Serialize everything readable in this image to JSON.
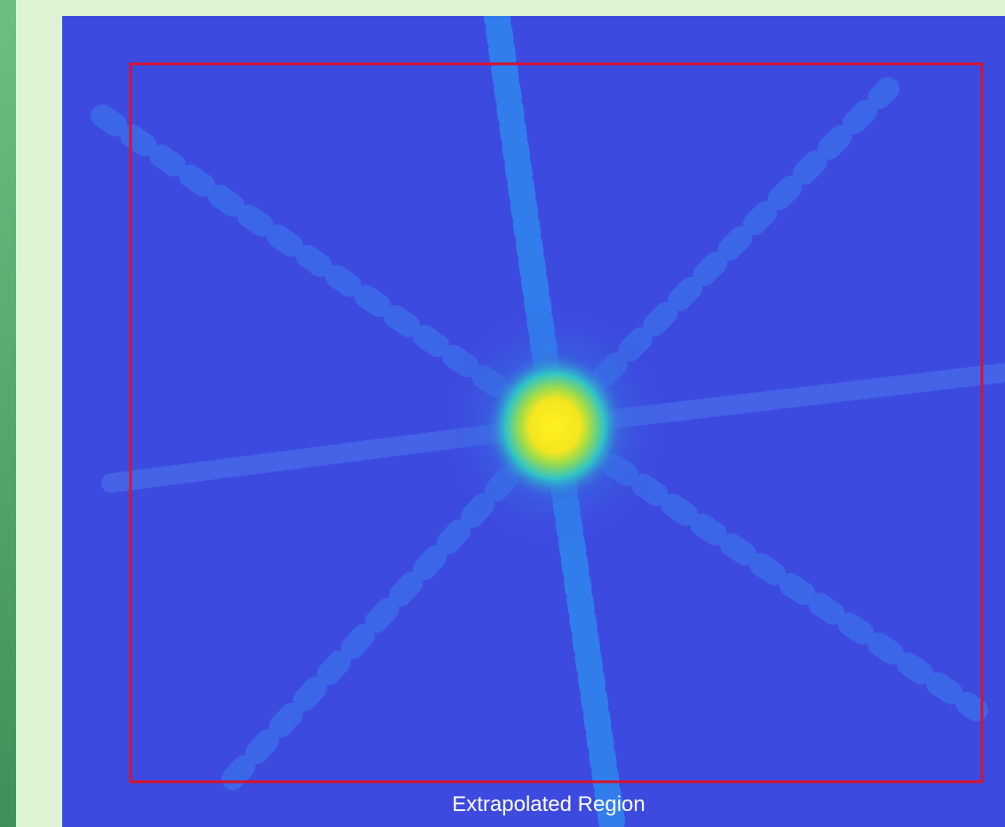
{
  "caption": "Extrapolated Region"
}
